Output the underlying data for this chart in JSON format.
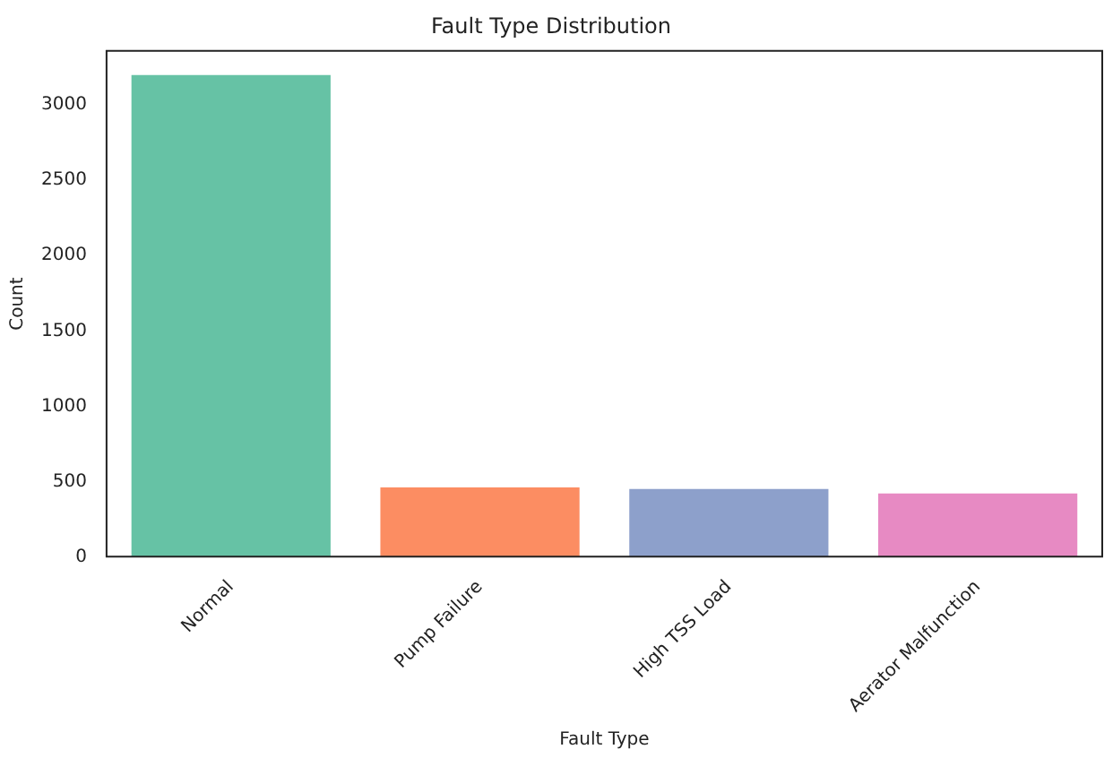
{
  "chart_data": {
    "type": "bar",
    "title": "Fault Type Distribution",
    "xlabel": "Fault Type",
    "ylabel": "Count",
    "categories": [
      "Normal",
      "Pump Failure",
      "High TSS Load",
      "Aerator Malfunction"
    ],
    "values": [
      3200,
      460,
      450,
      420
    ],
    "colors": [
      "#66c2a5",
      "#fc8d62",
      "#8da0cb",
      "#e78ac3"
    ],
    "ylim": [
      0,
      3360
    ],
    "yticks": [
      0,
      500,
      1000,
      1500,
      2000,
      2500,
      3000
    ],
    "grid": false,
    "legend": false
  }
}
